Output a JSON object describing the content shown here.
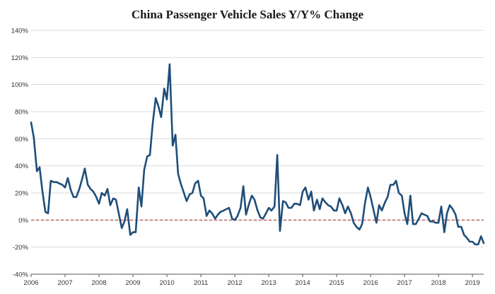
{
  "chart_data": {
    "type": "line",
    "title": "China Passenger Vehicle Sales Y/Y% Change",
    "xlabel": "",
    "ylabel": "",
    "ylim": [
      -40,
      140
    ],
    "xlim": [
      2006.0,
      2019.33
    ],
    "y_ticks": [
      -40,
      -20,
      0,
      20,
      40,
      60,
      80,
      100,
      120,
      140
    ],
    "y_tick_labels": [
      "-40%",
      "-20%",
      "0%",
      "20%",
      "40%",
      "60%",
      "80%",
      "100%",
      "120%",
      "140%"
    ],
    "x_ticks": [
      2006,
      2007,
      2008,
      2009,
      2010,
      2011,
      2012,
      2013,
      2014,
      2015,
      2016,
      2017,
      2018,
      2019
    ],
    "x_tick_labels": [
      "2006",
      "2007",
      "2008",
      "2009",
      "2010",
      "2011",
      "2012",
      "2013",
      "2014",
      "2015",
      "2016",
      "2017",
      "2018",
      "2019"
    ],
    "grid": "horizontal",
    "zero_line": {
      "value": 0,
      "color": "#b22222",
      "style": "dashed"
    },
    "series": [
      {
        "name": "China Passenger Vehicle Sales Y/Y% Change",
        "color": "#1f4e79",
        "x": [
          2006.0,
          2006.08,
          2006.17,
          2006.25,
          2006.33,
          2006.42,
          2006.5,
          2006.58,
          2006.67,
          2006.75,
          2006.83,
          2006.92,
          2007.0,
          2007.08,
          2007.17,
          2007.25,
          2007.33,
          2007.42,
          2007.5,
          2007.58,
          2007.67,
          2007.75,
          2007.83,
          2007.92,
          2008.0,
          2008.08,
          2008.17,
          2008.25,
          2008.33,
          2008.42,
          2008.5,
          2008.58,
          2008.67,
          2008.75,
          2008.83,
          2008.92,
          2009.0,
          2009.08,
          2009.17,
          2009.25,
          2009.33,
          2009.42,
          2009.5,
          2009.58,
          2009.67,
          2009.75,
          2009.83,
          2009.92,
          2010.0,
          2010.08,
          2010.17,
          2010.25,
          2010.33,
          2010.42,
          2010.5,
          2010.58,
          2010.67,
          2010.75,
          2010.83,
          2010.92,
          2011.0,
          2011.08,
          2011.17,
          2011.25,
          2011.33,
          2011.42,
          2011.5,
          2011.58,
          2011.67,
          2011.75,
          2011.83,
          2011.92,
          2012.0,
          2012.08,
          2012.17,
          2012.25,
          2012.33,
          2012.42,
          2012.5,
          2012.58,
          2012.67,
          2012.75,
          2012.83,
          2012.92,
          2013.0,
          2013.08,
          2013.17,
          2013.25,
          2013.33,
          2013.42,
          2013.5,
          2013.58,
          2013.67,
          2013.75,
          2013.83,
          2013.92,
          2014.0,
          2014.08,
          2014.17,
          2014.25,
          2014.33,
          2014.42,
          2014.5,
          2014.58,
          2014.67,
          2014.75,
          2014.83,
          2014.92,
          2015.0,
          2015.08,
          2015.17,
          2015.25,
          2015.33,
          2015.42,
          2015.5,
          2015.58,
          2015.67,
          2015.75,
          2015.83,
          2015.92,
          2016.0,
          2016.08,
          2016.17,
          2016.25,
          2016.33,
          2016.42,
          2016.5,
          2016.58,
          2016.67,
          2016.75,
          2016.83,
          2016.92,
          2017.0,
          2017.08,
          2017.17,
          2017.25,
          2017.33,
          2017.42,
          2017.5,
          2017.58,
          2017.67,
          2017.75,
          2017.83,
          2017.92,
          2018.0,
          2018.08,
          2018.17,
          2018.25,
          2018.33,
          2018.42,
          2018.5,
          2018.58,
          2018.67,
          2018.75,
          2018.83,
          2018.92,
          2019.0,
          2019.08,
          2019.17,
          2019.25,
          2019.33
        ],
        "values": [
          72,
          61,
          36,
          39,
          22,
          6,
          5,
          29,
          28,
          28,
          27,
          26,
          24,
          31,
          22,
          17,
          17,
          23,
          30,
          38,
          26,
          23,
          21,
          17,
          12,
          20,
          18,
          23,
          11,
          16,
          15,
          5,
          -6,
          -1,
          8,
          -11,
          -9,
          -9,
          24,
          10,
          37,
          47,
          48,
          71,
          90,
          84,
          76,
          97,
          89,
          115,
          55,
          63,
          34,
          26,
          20,
          14,
          19,
          20,
          27,
          29,
          18,
          16,
          3,
          7,
          5,
          1,
          4,
          6,
          7,
          8,
          9,
          1,
          0,
          3,
          9,
          25,
          4,
          12,
          18,
          15,
          7,
          2,
          1,
          5,
          9,
          7,
          10,
          48,
          -8,
          14,
          13,
          9,
          9,
          12,
          12,
          11,
          21,
          24,
          15,
          21,
          7,
          15,
          8,
          16,
          13,
          11,
          10,
          7,
          7,
          16,
          11,
          5,
          10,
          5,
          -2,
          -5,
          -7,
          -3,
          12,
          24,
          17,
          8,
          -2,
          11,
          7,
          13,
          17,
          26,
          26,
          29,
          20,
          18,
          5,
          -3,
          18,
          -3,
          -3,
          1,
          5,
          4,
          3,
          -1,
          -1,
          -2,
          -2,
          10,
          -9,
          5,
          11,
          8,
          4,
          -5,
          -5,
          -11,
          -13,
          -16,
          -16,
          -18,
          -18,
          -12,
          -17
        ]
      }
    ]
  }
}
